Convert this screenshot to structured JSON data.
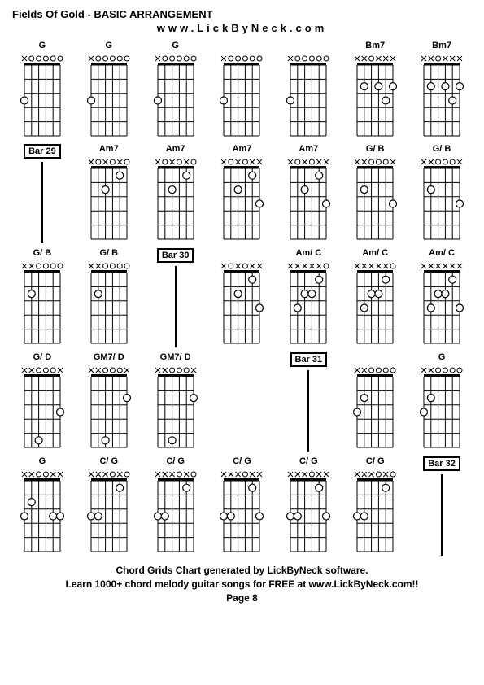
{
  "title": "Fields Of Gold - BASIC ARRANGEMENT",
  "url": "www.LickByNeck.com",
  "footer_line1": "Chord Grids Chart generated by LickByNeck software.",
  "footer_line2": "Learn 1000+ chord melody guitar songs for FREE at www.LickByNeck.com!!",
  "page_label": "Page 8",
  "frets": 5,
  "strings": 6,
  "colors": {
    "bg": "#ffffff",
    "line": "#000000",
    "dot_fill": "#ffffff",
    "dot_stroke": "#000000"
  },
  "cells": [
    {
      "type": "chord",
      "name": "G",
      "nut": [
        "x",
        "o",
        "o",
        "o",
        "o",
        "o"
      ],
      "dots": [
        {
          "s": 1,
          "f": 3
        }
      ]
    },
    {
      "type": "chord",
      "name": "G",
      "nut": [
        "x",
        "o",
        "o",
        "o",
        "o",
        "o"
      ],
      "dots": [
        {
          "s": 1,
          "f": 3
        }
      ]
    },
    {
      "type": "chord",
      "name": "G",
      "nut": [
        "x",
        "o",
        "o",
        "o",
        "o",
        "o"
      ],
      "dots": [
        {
          "s": 1,
          "f": 3
        }
      ]
    },
    {
      "type": "chord",
      "name": "",
      "nut": [
        "x",
        "o",
        "o",
        "o",
        "o",
        "o"
      ],
      "dots": [
        {
          "s": 1,
          "f": 3
        }
      ]
    },
    {
      "type": "chord",
      "name": "",
      "nut": [
        "x",
        "o",
        "o",
        "o",
        "o",
        "o"
      ],
      "dots": [
        {
          "s": 1,
          "f": 3
        }
      ]
    },
    {
      "type": "chord",
      "name": "Bm7",
      "nut": [
        "x",
        "x",
        "o",
        "x",
        "x",
        "x"
      ],
      "dots": [
        {
          "s": 2,
          "f": 2
        },
        {
          "s": 4,
          "f": 2
        },
        {
          "s": 5,
          "f": 3
        },
        {
          "s": 6,
          "f": 2
        }
      ]
    },
    {
      "type": "chord",
      "name": "Bm7",
      "nut": [
        "x",
        "x",
        "o",
        "x",
        "x",
        "x"
      ],
      "dots": [
        {
          "s": 2,
          "f": 2
        },
        {
          "s": 4,
          "f": 2
        },
        {
          "s": 5,
          "f": 3
        },
        {
          "s": 6,
          "f": 2
        }
      ]
    },
    {
      "type": "bar",
      "name": "Bar 29"
    },
    {
      "type": "chord",
      "name": "Am7",
      "nut": [
        "x",
        "o",
        "x",
        "o",
        "x",
        "o"
      ],
      "dots": [
        {
          "s": 3,
          "f": 2
        },
        {
          "s": 5,
          "f": 1
        }
      ]
    },
    {
      "type": "chord",
      "name": "Am7",
      "nut": [
        "x",
        "o",
        "x",
        "o",
        "x",
        "o"
      ],
      "dots": [
        {
          "s": 3,
          "f": 2
        },
        {
          "s": 5,
          "f": 1
        }
      ]
    },
    {
      "type": "chord",
      "name": "Am7",
      "nut": [
        "x",
        "o",
        "x",
        "o",
        "x",
        "x"
      ],
      "dots": [
        {
          "s": 3,
          "f": 2
        },
        {
          "s": 5,
          "f": 1
        },
        {
          "s": 6,
          "f": 3
        }
      ]
    },
    {
      "type": "chord",
      "name": "Am7",
      "nut": [
        "x",
        "o",
        "x",
        "o",
        "x",
        "x"
      ],
      "dots": [
        {
          "s": 3,
          "f": 2
        },
        {
          "s": 5,
          "f": 1
        },
        {
          "s": 6,
          "f": 3
        }
      ]
    },
    {
      "type": "chord",
      "name": "G/ B",
      "nut": [
        "x",
        "x",
        "o",
        "o",
        "o",
        "x"
      ],
      "dots": [
        {
          "s": 2,
          "f": 2
        },
        {
          "s": 6,
          "f": 3
        }
      ]
    },
    {
      "type": "chord",
      "name": "G/ B",
      "nut": [
        "x",
        "x",
        "o",
        "o",
        "o",
        "x"
      ],
      "dots": [
        {
          "s": 2,
          "f": 2
        },
        {
          "s": 6,
          "f": 3
        }
      ]
    },
    {
      "type": "chord",
      "name": "G/ B",
      "nut": [
        "x",
        "x",
        "o",
        "o",
        "o",
        "o"
      ],
      "dots": [
        {
          "s": 2,
          "f": 2
        }
      ]
    },
    {
      "type": "chord",
      "name": "G/ B",
      "nut": [
        "x",
        "x",
        "o",
        "o",
        "o",
        "o"
      ],
      "dots": [
        {
          "s": 2,
          "f": 2
        }
      ]
    },
    {
      "type": "bar",
      "name": "Bar 30"
    },
    {
      "type": "chord",
      "name": "",
      "nut": [
        "x",
        "o",
        "x",
        "o",
        "x",
        "x"
      ],
      "dots": [
        {
          "s": 3,
          "f": 2
        },
        {
          "s": 5,
          "f": 1
        },
        {
          "s": 6,
          "f": 3
        }
      ]
    },
    {
      "type": "chord",
      "name": "Am/ C",
      "nut": [
        "x",
        "x",
        "x",
        "x",
        "x",
        "o"
      ],
      "dots": [
        {
          "s": 2,
          "f": 3
        },
        {
          "s": 3,
          "f": 2
        },
        {
          "s": 4,
          "f": 2
        },
        {
          "s": 5,
          "f": 1
        }
      ]
    },
    {
      "type": "chord",
      "name": "Am/ C",
      "nut": [
        "x",
        "x",
        "x",
        "x",
        "x",
        "o"
      ],
      "dots": [
        {
          "s": 2,
          "f": 3
        },
        {
          "s": 3,
          "f": 2
        },
        {
          "s": 4,
          "f": 2
        },
        {
          "s": 5,
          "f": 1
        }
      ]
    },
    {
      "type": "chord",
      "name": "Am/ C",
      "nut": [
        "x",
        "x",
        "x",
        "x",
        "x",
        "x"
      ],
      "dots": [
        {
          "s": 2,
          "f": 3
        },
        {
          "s": 3,
          "f": 2
        },
        {
          "s": 4,
          "f": 2
        },
        {
          "s": 5,
          "f": 1
        },
        {
          "s": 6,
          "f": 3
        }
      ]
    },
    {
      "type": "chord",
      "name": "G/ D",
      "nut": [
        "x",
        "x",
        "o",
        "o",
        "o",
        "x"
      ],
      "dots": [
        {
          "s": 3,
          "f": 5
        },
        {
          "s": 6,
          "f": 3
        }
      ]
    },
    {
      "type": "chord",
      "name": "GM7/ D",
      "nut": [
        "x",
        "x",
        "o",
        "o",
        "o",
        "x"
      ],
      "dots": [
        {
          "s": 3,
          "f": 5
        },
        {
          "s": 6,
          "f": 2
        }
      ]
    },
    {
      "type": "chord",
      "name": "GM7/ D",
      "nut": [
        "x",
        "x",
        "o",
        "o",
        "o",
        "x"
      ],
      "dots": [
        {
          "s": 3,
          "f": 5
        },
        {
          "s": 6,
          "f": 2
        }
      ]
    },
    {
      "type": "blank"
    },
    {
      "type": "bar",
      "name": "Bar 31"
    },
    {
      "type": "chord",
      "name": "",
      "nut": [
        "x",
        "x",
        "o",
        "o",
        "o",
        "o"
      ],
      "dots": [
        {
          "s": 1,
          "f": 3
        },
        {
          "s": 2,
          "f": 2
        }
      ]
    },
    {
      "type": "chord",
      "name": "G",
      "nut": [
        "x",
        "x",
        "o",
        "o",
        "o",
        "o"
      ],
      "dots": [
        {
          "s": 1,
          "f": 3
        },
        {
          "s": 2,
          "f": 2
        }
      ]
    },
    {
      "type": "chord",
      "name": "G",
      "nut": [
        "x",
        "x",
        "o",
        "o",
        "x",
        "x"
      ],
      "dots": [
        {
          "s": 1,
          "f": 3
        },
        {
          "s": 2,
          "f": 2
        },
        {
          "s": 5,
          "f": 3
        },
        {
          "s": 6,
          "f": 3
        }
      ]
    },
    {
      "type": "chord",
      "name": "C/ G",
      "nut": [
        "x",
        "x",
        "x",
        "o",
        "x",
        "o"
      ],
      "dots": [
        {
          "s": 1,
          "f": 3
        },
        {
          "s": 2,
          "f": 3
        },
        {
          "s": 5,
          "f": 1
        }
      ]
    },
    {
      "type": "chord",
      "name": "C/ G",
      "nut": [
        "x",
        "x",
        "x",
        "o",
        "x",
        "o"
      ],
      "dots": [
        {
          "s": 1,
          "f": 3
        },
        {
          "s": 2,
          "f": 3
        },
        {
          "s": 5,
          "f": 1
        }
      ]
    },
    {
      "type": "chord",
      "name": "C/ G",
      "nut": [
        "x",
        "x",
        "x",
        "o",
        "x",
        "x"
      ],
      "dots": [
        {
          "s": 1,
          "f": 3
        },
        {
          "s": 2,
          "f": 3
        },
        {
          "s": 5,
          "f": 1
        },
        {
          "s": 6,
          "f": 3
        }
      ]
    },
    {
      "type": "chord",
      "name": "C/ G",
      "nut": [
        "x",
        "x",
        "x",
        "o",
        "x",
        "x"
      ],
      "dots": [
        {
          "s": 1,
          "f": 3
        },
        {
          "s": 2,
          "f": 3
        },
        {
          "s": 5,
          "f": 1
        },
        {
          "s": 6,
          "f": 3
        }
      ]
    },
    {
      "type": "chord",
      "name": "C/ G",
      "nut": [
        "x",
        "x",
        "x",
        "o",
        "x",
        "o"
      ],
      "dots": [
        {
          "s": 1,
          "f": 3
        },
        {
          "s": 2,
          "f": 3
        },
        {
          "s": 5,
          "f": 1
        }
      ]
    },
    {
      "type": "bar",
      "name": "Bar 32"
    }
  ]
}
